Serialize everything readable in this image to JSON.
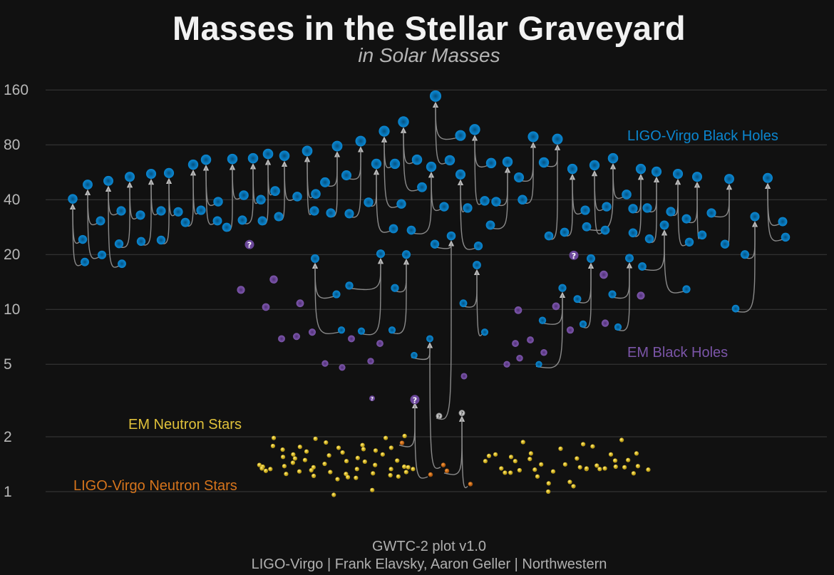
{
  "header": {
    "title": "Masses in the Stellar Graveyard",
    "subtitle": "in Solar Masses"
  },
  "footer": {
    "line1": "GWTC-2 plot v1.0",
    "line2": "LIGO-Virgo | Frank Elavsky, Aaron Geller | Northwestern"
  },
  "chart_data": {
    "type": "scatter",
    "title": "Masses in the Stellar Graveyard",
    "subtitle": "in Solar Masses",
    "y_scale": "log",
    "ylim": [
      0.85,
      175
    ],
    "y_ticks": [
      1,
      2,
      5,
      10,
      20,
      40,
      80,
      160
    ],
    "grid": true,
    "colors": {
      "ligo_virgo_black_holes": "#0a86cf",
      "em_black_holes": "#7b55a8",
      "em_neutron_stars": "#e3c534",
      "ligo_virgo_neutron_stars": "#d6741c",
      "uncertain_remnant": "#c8c8c8",
      "background": "#111111"
    },
    "legend": {
      "ligo_virgo_black_holes": "LIGO-Virgo Black Holes",
      "em_black_holes": "EM Black Holes",
      "em_neutron_stars": "EM Neutron Stars",
      "ligo_virgo_neutron_stars": "LIGO-Virgo Neutron Stars"
    },
    "uncertain_marker": "?",
    "ligo_virgo_mergers": [
      {
        "final": 40.4,
        "m1": 24.2,
        "m2": 18.2
      },
      {
        "final": 48.4,
        "m1": 30.6,
        "m2": 19.9
      },
      {
        "final": 50.7,
        "m1": 34.7,
        "m2": 17.8
      },
      {
        "final": 53.4,
        "m1": 32.9,
        "m2": 22.9
      },
      {
        "final": 55.4,
        "m1": 34.7,
        "m2": 23.6
      },
      {
        "final": 56.0,
        "m1": 34.3,
        "m2": 24.0
      },
      {
        "final": 62.3,
        "m1": 35.0,
        "m2": 30.0
      },
      {
        "final": 66.3,
        "m1": 39.0,
        "m2": 30.6
      },
      {
        "final": 66.9,
        "m1": 42.3,
        "m2": 28.2
      },
      {
        "final": 67.5,
        "m1": 40.0,
        "m2": 30.9
      },
      {
        "final": 71.3,
        "m1": 44.6,
        "m2": 30.6
      },
      {
        "final": 69.6,
        "m1": 41.6,
        "m2": 32.3
      },
      {
        "final": 74.0,
        "m1": 43.0,
        "m2": 34.7
      },
      {
        "final": 78.7,
        "m1": 49.8,
        "m2": 33.8
      },
      {
        "final": 83.8,
        "m1": 54.4,
        "m2": 33.5
      },
      {
        "final": 62.9,
        "m1": 38.7,
        "m2": 27.7
      },
      {
        "final": 95.0,
        "m1": 62.9,
        "m2": 37.9
      },
      {
        "final": 107.0,
        "m1": 66.3,
        "m2": 46.8
      },
      {
        "final": 60.6,
        "m1": 36.6,
        "m2": 27.2
      },
      {
        "final": 148.0,
        "m1": 90.0,
        "m2": 65.8
      },
      {
        "final": 55.0,
        "m1": 36.0,
        "m2": 22.3
      },
      {
        "final": 97.0,
        "m1": 63.5,
        "m2": 39.4
      },
      {
        "final": 64.5,
        "m1": 39.0,
        "m2": 29.0
      },
      {
        "final": 88.6,
        "m1": 53.0,
        "m2": 40.0
      },
      {
        "final": 86.0,
        "m1": 64.0,
        "m2": 25.3
      },
      {
        "final": 59.0,
        "m1": 35.0,
        "m2": 26.5
      },
      {
        "final": 61.8,
        "m1": 36.6,
        "m2": 27.2
      },
      {
        "final": 67.5,
        "m1": 42.7,
        "m2": 28.4
      },
      {
        "final": 59.0,
        "m1": 35.7,
        "m2": 26.3
      },
      {
        "final": 57.0,
        "m1": 36.0,
        "m2": 24.4
      },
      {
        "final": 55.4,
        "m1": 34.4,
        "m2": 23.4
      },
      {
        "final": 53.4,
        "m1": 31.4,
        "m2": 25.6
      },
      {
        "final": 52.0,
        "m1": 33.8,
        "m2": 22.8
      },
      {
        "final": 52.6,
        "m1": 30.3,
        "m2": 24.9
      },
      {
        "final": 32.3,
        "m1": 20.0,
        "m2": 10.1
      },
      {
        "final": 19.0,
        "m1": 12.1,
        "m2": 7.7
      },
      {
        "final": 20.2,
        "m1": 13.5,
        "m2": 7.6
      },
      {
        "final": 20.0,
        "m1": 13.1,
        "m2": 7.7
      },
      {
        "final": 17.5,
        "m1": 10.8,
        "m2": 7.5
      },
      {
        "final": 6.9,
        "m1": 5.6,
        "m2": 1.4
      },
      {
        "final": 13.1,
        "m1": 8.7,
        "m2": 5.0
      },
      {
        "final": 19.0,
        "m1": 11.4,
        "m2": 8.3
      },
      {
        "final": 19.1,
        "m1": 12.1,
        "m2": 8.0
      },
      {
        "final": 29.0,
        "m1": 17.2,
        "m2": 12.9
      },
      {
        "final": 25.3,
        "m1": 22.8,
        "m2": 2.6,
        "m2_uncertain": true
      },
      {
        "final": 3.2,
        "m1": 1.85,
        "m2": 1.24,
        "final_uncertain": true
      },
      {
        "final": 2.7,
        "m1": 1.3,
        "m2": 1.1,
        "final_uncertain": true
      }
    ],
    "em_black_holes": [
      {
        "mass": 22.7,
        "uncertain": true
      },
      {
        "mass": 19.8,
        "uncertain": true
      },
      {
        "mass": 3.25,
        "uncertain": true
      },
      {
        "mass": 12.8
      },
      {
        "mass": 14.6
      },
      {
        "mass": 10.3
      },
      {
        "mass": 10.8
      },
      {
        "mass": 6.9
      },
      {
        "mass": 7.1
      },
      {
        "mass": 7.5
      },
      {
        "mass": 6.9
      },
      {
        "mass": 6.5
      },
      {
        "mass": 5.2
      },
      {
        "mass": 5.05
      },
      {
        "mass": 4.8
      },
      {
        "mass": 4.3
      },
      {
        "mass": 9.9
      },
      {
        "mass": 10.4
      },
      {
        "mass": 15.5
      },
      {
        "mass": 11.9
      },
      {
        "mass": 7.7
      },
      {
        "mass": 8.4
      },
      {
        "mass": 6.8
      },
      {
        "mass": 6.5
      },
      {
        "mass": 5.4
      },
      {
        "mass": 5.8
      },
      {
        "mass": 5.0
      }
    ],
    "em_neutron_stars": [
      1.4,
      1.37,
      1.34,
      1.3,
      1.33,
      1.97,
      1.78,
      1.7,
      1.55,
      1.38,
      1.25,
      1.6,
      1.52,
      1.44,
      1.29,
      1.76,
      1.66,
      1.49,
      1.31,
      1.36,
      1.22,
      1.95,
      1.86,
      1.58,
      1.42,
      1.28,
      1.17,
      0.96,
      1.74,
      1.64,
      1.47,
      1.25,
      1.2,
      1.53,
      1.19,
      1.33,
      1.8,
      1.71,
      1.46,
      1.26,
      1.02,
      1.4,
      1.68,
      1.97,
      1.6,
      1.33,
      1.23,
      1.74,
      1.48,
      1.21,
      1.37,
      1.28,
      2.02,
      1.36,
      1.33,
      1.47,
      1.57,
      1.6,
      1.34,
      1.27,
      1.55,
      1.27,
      1.47,
      1.31,
      1.87,
      1.51,
      1.62,
      1.32,
      1.21,
      1.41,
      1.11,
      1.0,
      1.29,
      1.72,
      1.41,
      1.13,
      1.07,
      1.52,
      1.36,
      1.82,
      1.33,
      1.34,
      1.77,
      1.39,
      1.33,
      1.34,
      1.6,
      1.48,
      1.37,
      1.36,
      1.92,
      1.49,
      1.26,
      1.62,
      1.38,
      1.32
    ]
  }
}
